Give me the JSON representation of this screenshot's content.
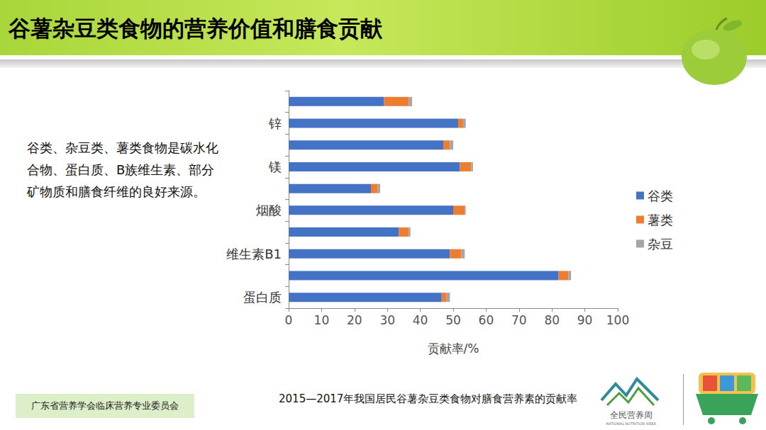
{
  "page": {
    "heading": "谷薯杂豆类食物的营养价值和膳食贡献",
    "body": "谷类、杂豆类、薯类食物是碳水化合物、蛋白质、B族维生素、部分矿物质和膳食纤维的良好来源。",
    "organization": "广东省营养学会临床营养专业委员会",
    "logo": "全民营养周",
    "logo_en": "NATIONAL NUTRITION WEEK"
  },
  "chart_data": {
    "type": "bar",
    "title": "2015—2017年我国居民谷薯杂豆类食物对膳食营养素的贡献率",
    "orientation": "horizontal",
    "stacked": true,
    "grid": false,
    "legend": "right",
    "data_labels": false,
    "x_label": "贡献率/%",
    "categories": [
      "蛋白质",
      null,
      "维生素B1",
      null,
      "烟酸",
      null,
      "镁",
      null,
      "锌",
      null
    ],
    "series": [
      {
        "name": "谷类",
        "color": "#4472c4",
        "values": [
          46.5,
          82,
          49,
          33.5,
          50,
          25,
          52,
          47,
          51.5,
          29
        ]
      },
      {
        "name": "薯类",
        "color": "#ed7d31",
        "values": [
          1.5,
          3,
          3.5,
          3,
          3.5,
          2,
          3.5,
          2,
          1.5,
          7.5
        ]
      },
      {
        "name": "杂豆",
        "color": "#a5a5a5",
        "values": [
          1,
          0.8,
          1,
          0.5,
          0.3,
          0.8,
          0.5,
          1,
          0.8,
          1
        ]
      }
    ],
    "xlim": [
      0,
      100
    ],
    "xticks": [
      0,
      10,
      20,
      30,
      40,
      50,
      60,
      70,
      80,
      90,
      100
    ]
  }
}
